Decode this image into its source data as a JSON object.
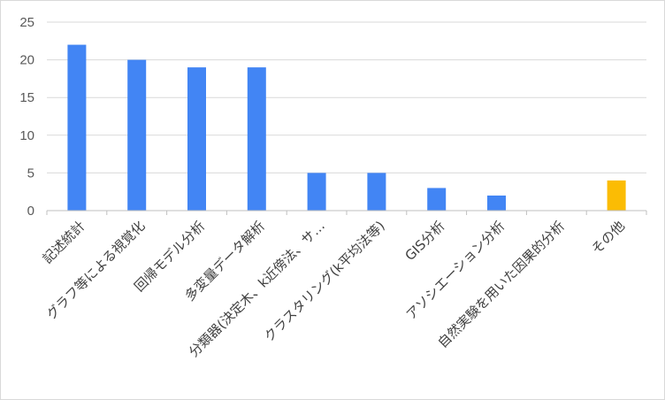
{
  "chart_data": {
    "type": "bar",
    "categories": [
      "記述統計",
      "グラフ等による視覚化",
      "回帰モデル分析",
      "多変量データ解析",
      "分類器(決定木、k近傍法、サ…",
      "クラスタリング(k平均法等)",
      "GIS分析",
      "アソシエーション分析",
      "自然実験を用いた因果的分析",
      "その他"
    ],
    "values": [
      22,
      20,
      19,
      19,
      5,
      5,
      3,
      2,
      0,
      4
    ],
    "colors": [
      "#4285F4",
      "#4285F4",
      "#4285F4",
      "#4285F4",
      "#4285F4",
      "#4285F4",
      "#4285F4",
      "#4285F4",
      "#4285F4",
      "#FBBC04"
    ],
    "ylim": [
      0,
      25
    ],
    "yticks": [
      "0",
      "5",
      "10",
      "15",
      "20",
      "25"
    ],
    "ytick_values": [
      0,
      5,
      10,
      15,
      20,
      25
    ],
    "grid": true,
    "title": "",
    "xlabel": "",
    "ylabel": ""
  }
}
